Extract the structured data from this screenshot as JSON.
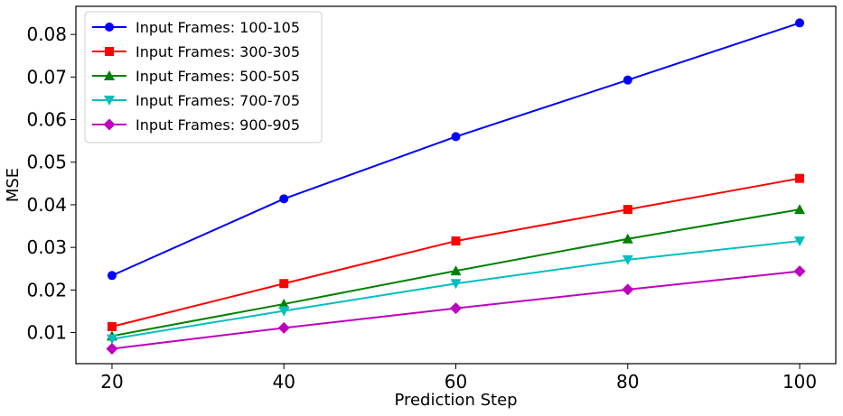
{
  "chart_data": {
    "type": "line",
    "title": "",
    "xlabel": "Prediction Step",
    "ylabel": "MSE",
    "x": [
      20,
      40,
      60,
      80,
      100
    ],
    "xlim": [
      15.8,
      104.2
    ],
    "ylim": [
      0.0027,
      0.0866
    ],
    "xticks": [
      20,
      40,
      60,
      80,
      100
    ],
    "yticks": [
      0.01,
      0.02,
      0.03,
      0.04,
      0.05,
      0.06,
      0.07,
      0.08
    ],
    "xtick_labels": [
      "20",
      "40",
      "60",
      "80",
      "100"
    ],
    "ytick_labels": [
      "0.01",
      "0.02",
      "0.03",
      "0.04",
      "0.05",
      "0.06",
      "0.07",
      "0.08"
    ],
    "grid": false,
    "legend_position": "top-left",
    "series": [
      {
        "name": "Input Frames: 100-105",
        "color": "#0000ff",
        "marker": "circle",
        "values": [
          0.0234,
          0.0414,
          0.056,
          0.0693,
          0.0827
        ]
      },
      {
        "name": "Input Frames: 300-305",
        "color": "#ff0000",
        "marker": "square",
        "values": [
          0.0114,
          0.0215,
          0.0315,
          0.0389,
          0.0462
        ]
      },
      {
        "name": "Input Frames: 500-505",
        "color": "#008000",
        "marker": "triangle-up",
        "values": [
          0.0092,
          0.0167,
          0.0245,
          0.032,
          0.0389
        ]
      },
      {
        "name": "Input Frames: 700-705",
        "color": "#00bfbf",
        "marker": "triangle-down",
        "values": [
          0.0085,
          0.0151,
          0.0215,
          0.0271,
          0.0315
        ]
      },
      {
        "name": "Input Frames: 900-905",
        "color": "#bf00bf",
        "marker": "diamond",
        "values": [
          0.0062,
          0.0111,
          0.0157,
          0.0201,
          0.0244
        ]
      }
    ]
  }
}
